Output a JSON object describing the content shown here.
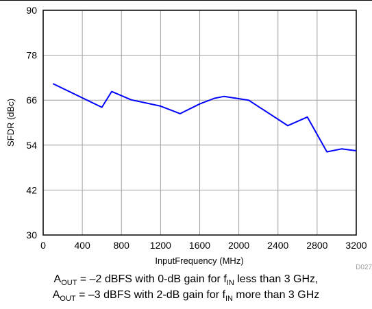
{
  "chart_data": {
    "type": "line",
    "title": "",
    "xlabel": "InputFrequency (MHz)",
    "ylabel": "SFDR (dBc)",
    "xlim": [
      0,
      3200
    ],
    "ylim": [
      30,
      90
    ],
    "x_ticks": [
      0,
      400,
      800,
      1200,
      1600,
      2000,
      2400,
      2800,
      3200
    ],
    "y_ticks": [
      30,
      42,
      54,
      66,
      78,
      90
    ],
    "grid": true,
    "series": [
      {
        "color": "#0000ff",
        "points": [
          [
            100,
            70.4
          ],
          [
            600,
            64.1
          ],
          [
            700,
            68.3
          ],
          [
            900,
            66.1
          ],
          [
            1200,
            64.4
          ],
          [
            1400,
            62.4
          ],
          [
            1600,
            65.0
          ],
          [
            1750,
            66.5
          ],
          [
            1850,
            67.0
          ],
          [
            2100,
            66.0
          ],
          [
            2500,
            59.2
          ],
          [
            2700,
            61.5
          ],
          [
            2900,
            52.2
          ],
          [
            3050,
            53.0
          ],
          [
            3200,
            52.5
          ]
        ]
      }
    ],
    "figure_id": "D027"
  },
  "caption": {
    "line1": {
      "a": "A",
      "a_sub": "OUT",
      "mid": " = –2 dBFS with 0-dB gain for f",
      "f_sub": "IN",
      "end": " less than 3 GHz,"
    },
    "line2": {
      "a": "A",
      "a_sub": "OUT",
      "mid": " = –3 dBFS with 2-dB gain for f",
      "f_sub": "IN",
      "end": " more than 3 GHz"
    }
  }
}
